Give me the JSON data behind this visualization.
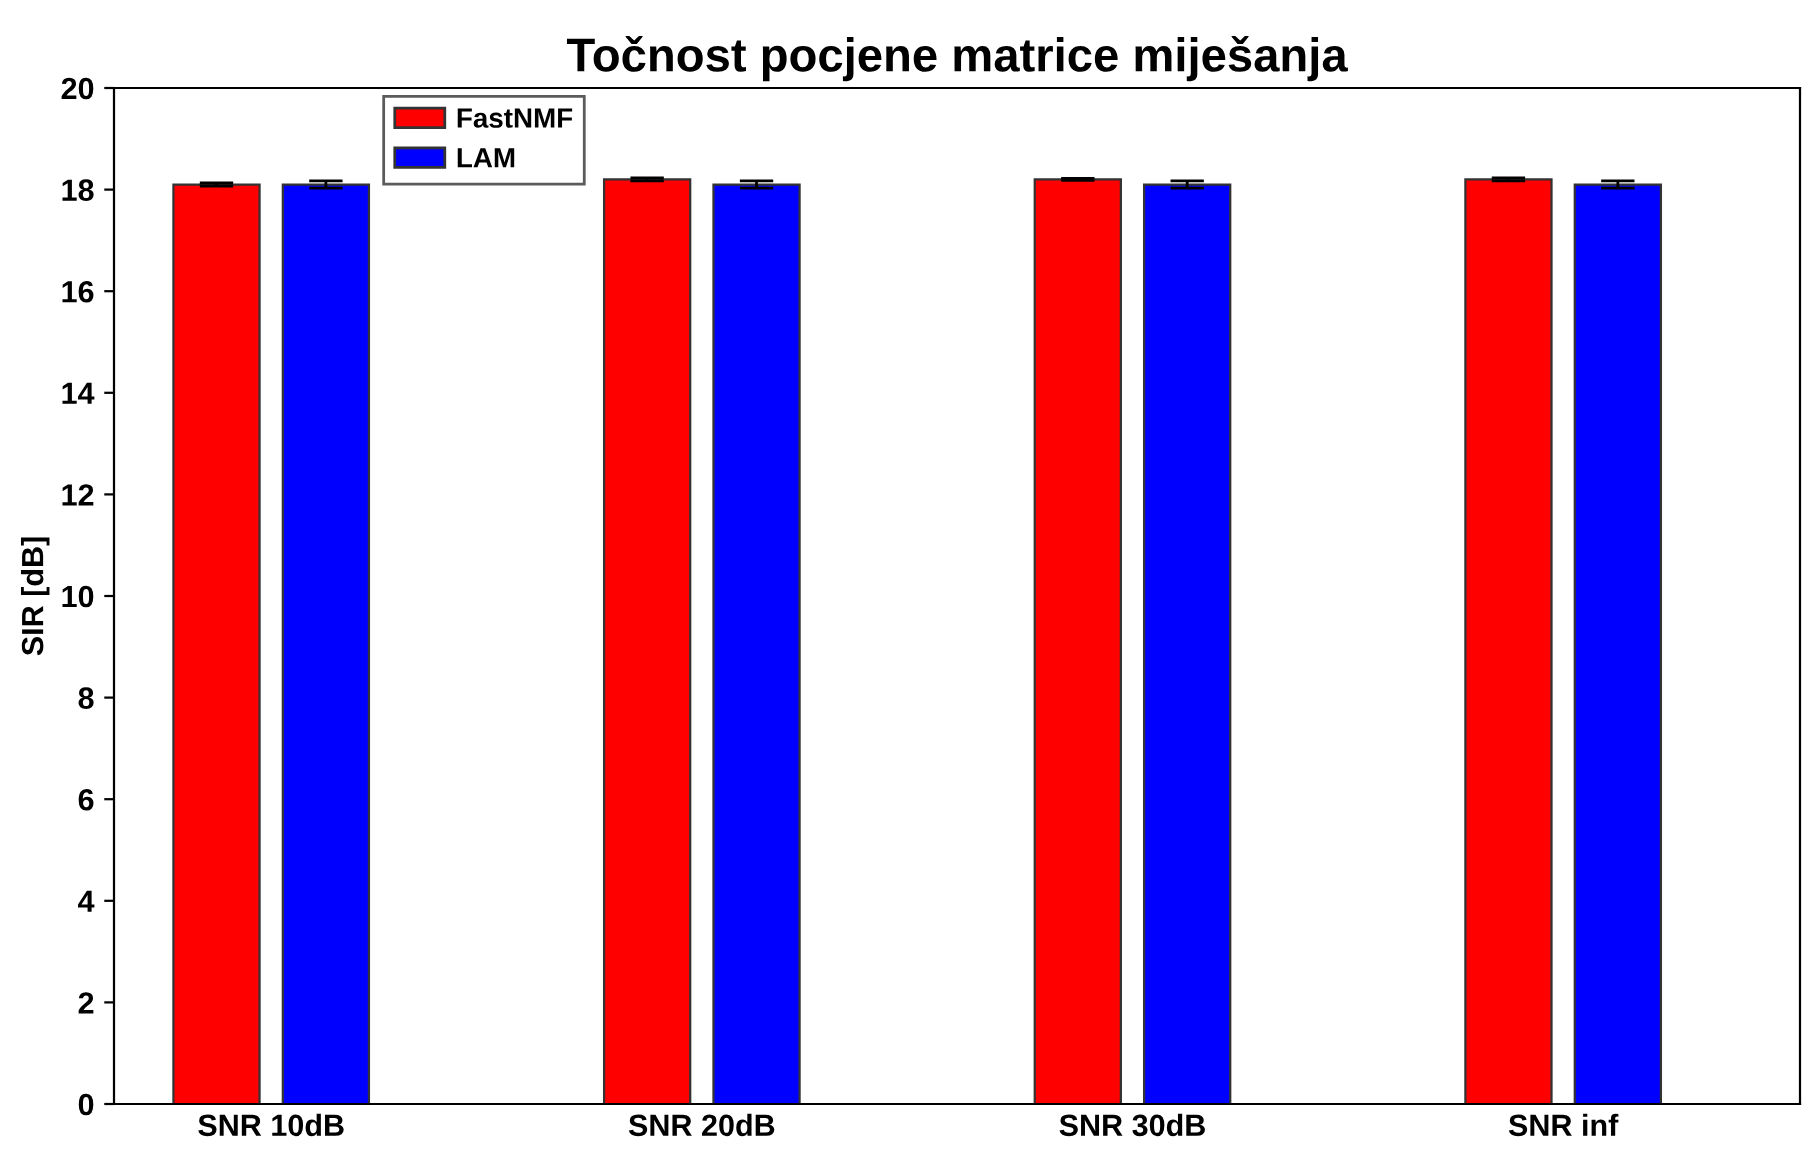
{
  "chart_data": {
    "type": "bar",
    "title": "Točnost pocjene matrice miješanja",
    "ylabel": "SIR [dB]",
    "categories": [
      "SNR 10dB",
      "SNR 20dB",
      "SNR 30dB",
      "SNR inf"
    ],
    "series": [
      {
        "name": "FastNMF",
        "color": "#ff0000",
        "values": [
          18.1,
          18.2,
          18.2,
          18.2
        ],
        "errors": [
          0.03,
          0.03,
          0.02,
          0.03
        ]
      },
      {
        "name": "LAM",
        "color": "#0000ff",
        "values": [
          18.1,
          18.1,
          18.1,
          18.1
        ],
        "errors": [
          0.07,
          0.07,
          0.07,
          0.07
        ]
      }
    ],
    "ylim": [
      0,
      20
    ],
    "yticks": [
      0,
      2,
      4,
      6,
      8,
      10,
      12,
      14,
      16,
      18,
      20
    ],
    "grid": false,
    "legend": "top left"
  }
}
